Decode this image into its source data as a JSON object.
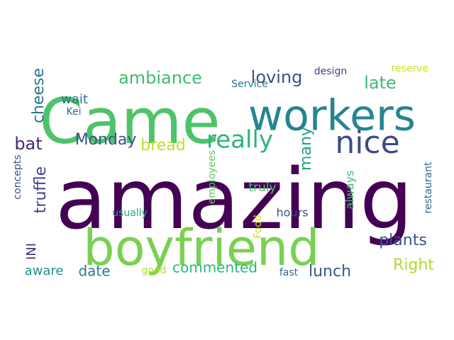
{
  "cloud": {
    "background": "#ffffff",
    "words": [
      {
        "text": "amazing",
        "color": "#440154"
      },
      {
        "text": "Came",
        "color": "#4fc36a"
      },
      {
        "text": "workers",
        "color": "#25858e"
      },
      {
        "text": "boyfriend",
        "color": "#7ad151"
      },
      {
        "text": "nice",
        "color": "#3e4a89"
      },
      {
        "text": "really",
        "color": "#2fb47c"
      },
      {
        "text": "ambiance",
        "color": "#3dbc74"
      },
      {
        "text": "loving",
        "color": "#3b528b"
      },
      {
        "text": "late",
        "color": "#3dbc74"
      },
      {
        "text": "cheese",
        "color": "#2a788e"
      },
      {
        "text": "truffle",
        "color": "#404688"
      },
      {
        "text": "bat",
        "color": "#482878"
      },
      {
        "text": "Monday",
        "color": "#3b528b"
      },
      {
        "text": "bread",
        "color": "#bddf26"
      },
      {
        "text": "many",
        "color": "#20a386"
      },
      {
        "text": "plants",
        "color": "#3b528b"
      },
      {
        "text": "Right",
        "color": "#addc30"
      },
      {
        "text": "lunch",
        "color": "#38598c"
      },
      {
        "text": "date",
        "color": "#2a788e"
      },
      {
        "text": "commented",
        "color": "#2fb47c"
      },
      {
        "text": "wait",
        "color": "#2c728e"
      },
      {
        "text": "Kei",
        "color": "#31688e"
      },
      {
        "text": "design",
        "color": "#414487"
      },
      {
        "text": "reserve",
        "color": "#d0e11c"
      },
      {
        "text": "Service",
        "color": "#2a788e"
      },
      {
        "text": "employees",
        "color": "#5ec962"
      },
      {
        "text": "truly",
        "color": "#44bf70"
      },
      {
        "text": "always",
        "color": "#44bf70"
      },
      {
        "text": "restaurant",
        "color": "#33638d"
      },
      {
        "text": "concepts",
        "color": "#3b528b"
      },
      {
        "text": "usually",
        "color": "#22a884"
      },
      {
        "text": "hours",
        "color": "#3e4a89"
      },
      {
        "text": "Food",
        "color": "#d2e21b"
      },
      {
        "text": "INI",
        "color": "#46327e"
      },
      {
        "text": "aware",
        "color": "#21918c"
      },
      {
        "text": "good",
        "color": "#b5de2b"
      },
      {
        "text": "fast",
        "color": "#33638d"
      }
    ]
  }
}
